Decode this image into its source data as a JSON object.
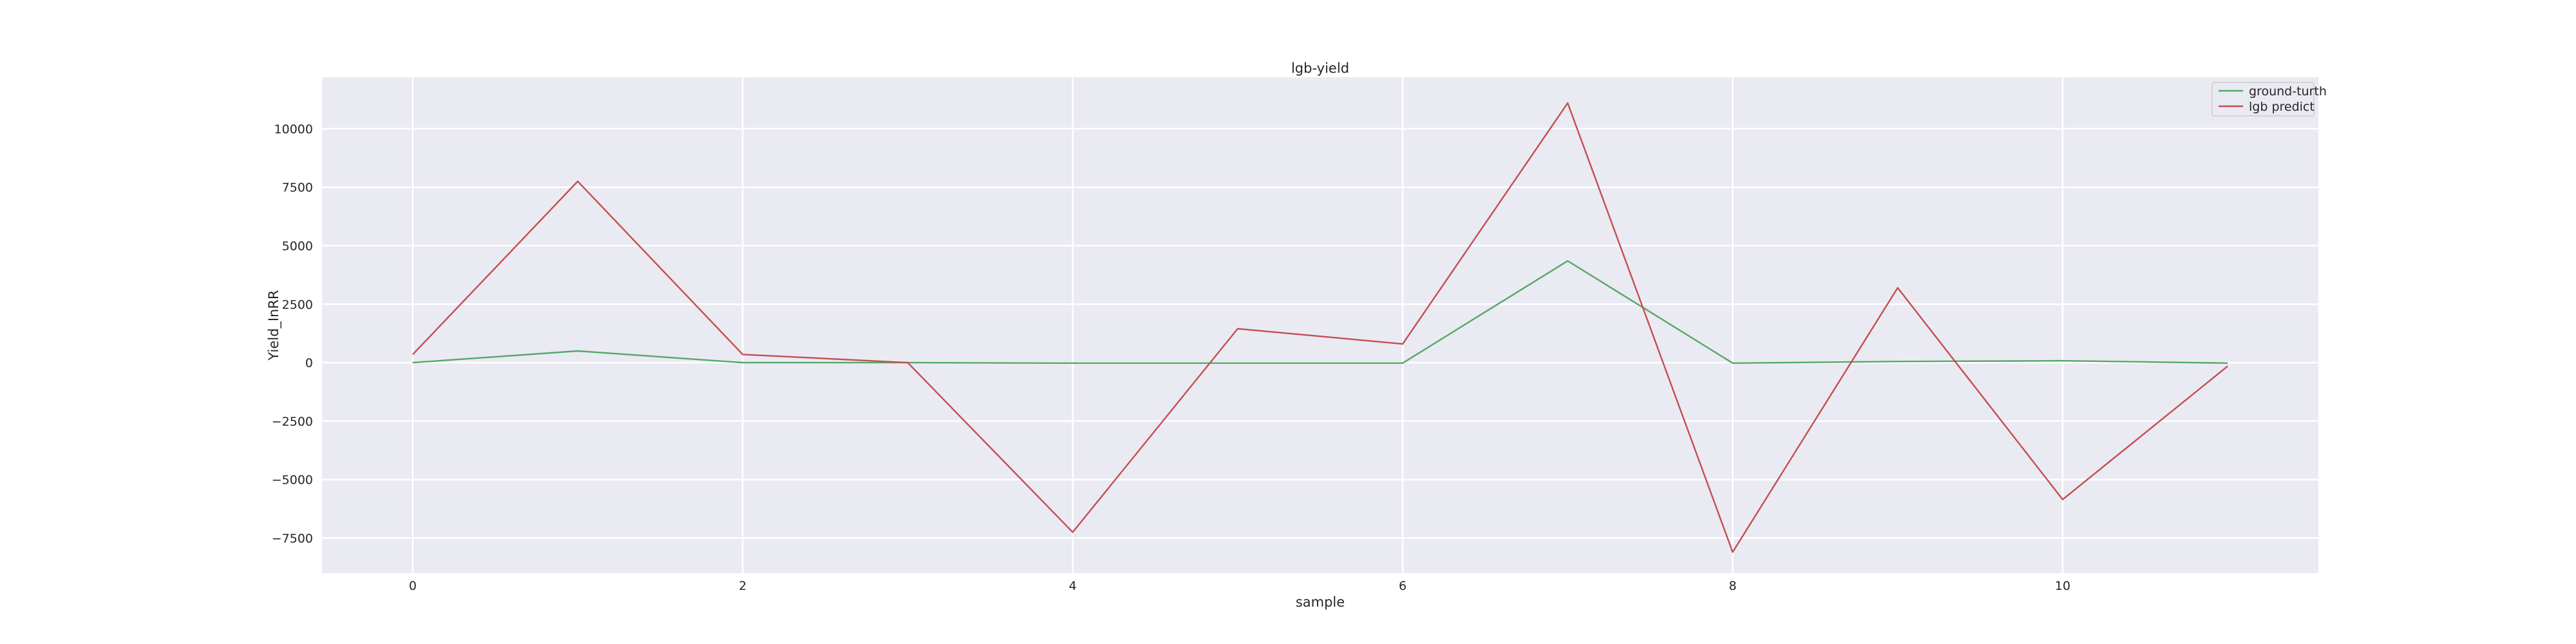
{
  "chart_data": {
    "type": "line",
    "title": "lgb-yield",
    "xlabel": "sample",
    "ylabel": "Yield_InRR",
    "x": [
      0,
      1,
      2,
      3,
      4,
      5,
      6,
      7,
      8,
      9,
      10,
      11
    ],
    "xlim": [
      -0.55,
      11.55
    ],
    "ylim": [
      -9000,
      12200
    ],
    "xticks": [
      0,
      2,
      4,
      6,
      8,
      10
    ],
    "xtick_labels": [
      "0",
      "2",
      "4",
      "6",
      "8",
      "10"
    ],
    "yticks": [
      -7500,
      -5000,
      -2500,
      0,
      2500,
      5000,
      7500,
      10000
    ],
    "ytick_labels": [
      "−7500",
      "−5000",
      "−2500",
      "0",
      "2500",
      "5000",
      "7500",
      "10000"
    ],
    "grid": true,
    "legend_position": "top-right",
    "series": [
      {
        "name": "ground-turth",
        "color": "#55a868",
        "values": [
          0,
          500,
          0,
          0,
          -20,
          -20,
          -20,
          4350,
          -20,
          50,
          80,
          -20
        ]
      },
      {
        "name": "lgb predict",
        "color": "#c44e52",
        "values": [
          350,
          7750,
          350,
          0,
          -7250,
          1450,
          800,
          11100,
          -8100,
          3200,
          -5850,
          -150
        ]
      }
    ]
  }
}
